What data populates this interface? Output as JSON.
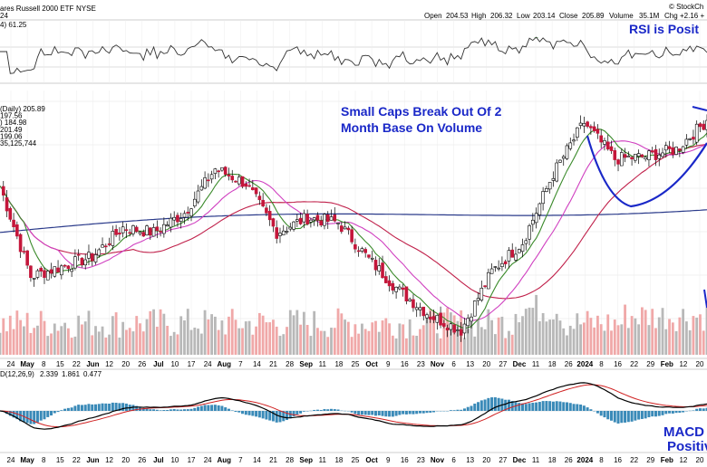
{
  "header": {
    "title": "ares Russell 2000 ETF",
    "exchange": "NYSE",
    "watermark": "© StockCh",
    "quote": {
      "open_label": "Open",
      "open": "204.53",
      "high_label": "High",
      "high": "206.32",
      "low_label": "Low",
      "low": "203.14",
      "close_label": "Close",
      "close": "205.89",
      "volume_label": "Volume",
      "volume": "35.1M",
      "chg_label": "Chg",
      "chg": "+2.16 +"
    },
    "row2": "24"
  },
  "rsi_panel": {
    "label": "4) 61.25",
    "annotation": "RSI is Posit"
  },
  "price_panel": {
    "legend": [
      {
        "text": "(Daily) 205.89",
        "color": "#000000"
      },
      {
        "text": "197.56",
        "color": "#cc2200"
      },
      {
        "text": ") 184.98",
        "color": "#c0507a"
      },
      {
        "text": "201.49",
        "color": "#3a8a2a"
      },
      {
        "text": "199.06",
        "color": "#d040c0"
      },
      {
        "text": "35,125,744",
        "color": "#555555"
      }
    ],
    "annotation_line1": "Small Caps Break Out Of 2",
    "annotation_line2": "Month Base On Volume"
  },
  "macd_panel": {
    "label_prefix": "D(12,26,9)",
    "macd": "2.339",
    "signal": "1.861",
    "hist": "0.477",
    "annotation_line1": "MACD",
    "annotation_line2": "Positiv"
  },
  "x_axis": {
    "upper_labels": [
      "24",
      "May",
      "8",
      "15",
      "22",
      "Jun",
      "12",
      "20",
      "26",
      "Jul",
      "10",
      "17",
      "24",
      "Aug",
      "7",
      "14",
      "21",
      "28",
      "Sep",
      "11",
      "18",
      "25",
      "Oct",
      "9",
      "16",
      "23",
      "Nov",
      "6",
      "13",
      "20",
      "27",
      "Dec",
      "11",
      "18",
      "26",
      "2024",
      "8",
      "16",
      "22",
      "29",
      "Feb",
      "12",
      "20"
    ],
    "lower_labels": [
      "24",
      "May",
      "8",
      "15",
      "22",
      "Jun",
      "12",
      "20",
      "26",
      "Jul",
      "10",
      "17",
      "24",
      "Aug",
      "7",
      "14",
      "21",
      "28",
      "Sep",
      "11",
      "18",
      "25",
      "Oct",
      "9",
      "16",
      "23",
      "Nov",
      "6",
      "13",
      "20",
      "27",
      "Dec",
      "11",
      "18",
      "26",
      "2024",
      "8",
      "16",
      "22",
      "29",
      "Feb",
      "12",
      "20"
    ]
  },
  "colors": {
    "up_candle": "#ffffff",
    "down_candle": "#c4163a",
    "volume_up": "#b8b8b8",
    "volume_down": "#f0a8a8",
    "sma_short": "#3a8a2a",
    "sma_mid": "#d040c0",
    "sma_long": "#c0204a",
    "sma_200": "#2a3a8a",
    "macd_line": "#000000",
    "signal_line": "#d02020",
    "histogram": "#3a8ab8",
    "annotation": "#1a28c8",
    "rsi_fill": "#3a9a3a"
  },
  "chart_data": {
    "type": "candlestick",
    "title": "ares Russell 2000 ETF",
    "period": "Daily",
    "anchors": [
      {
        "date": "Apr 24",
        "close": 192.5
      },
      {
        "date": "May 8",
        "close": 174.0
      },
      {
        "date": "May 22",
        "close": 176.0
      },
      {
        "date": "Jun 1",
        "close": 178.0
      },
      {
        "date": "Jun 12",
        "close": 184.0
      },
      {
        "date": "Jun 26",
        "close": 183.0
      },
      {
        "date": "Jul 10",
        "close": 187.0
      },
      {
        "date": "Jul 24",
        "close": 196.0
      },
      {
        "date": "Aug 1",
        "close": 193.0
      },
      {
        "date": "Aug 14",
        "close": 183.0
      },
      {
        "date": "Aug 28",
        "close": 186.0
      },
      {
        "date": "Sep 11",
        "close": 185.0
      },
      {
        "date": "Sep 25",
        "close": 177.5
      },
      {
        "date": "Oct 9",
        "close": 171.0
      },
      {
        "date": "Oct 23",
        "close": 166.0
      },
      {
        "date": "Oct 31",
        "close": 163.0
      },
      {
        "date": "Nov 13",
        "close": 175.0
      },
      {
        "date": "Nov 27",
        "close": 181.0
      },
      {
        "date": "Dec 11",
        "close": 195.0
      },
      {
        "date": "Dec 26",
        "close": 205.5
      },
      {
        "date": "Jan 8",
        "close": 198.0
      },
      {
        "date": "Jan 22",
        "close": 198.5
      },
      {
        "date": "Feb 1",
        "close": 200.0
      },
      {
        "date": "Feb 20",
        "close": 205.89
      }
    ],
    "ylim": [
      158,
      212
    ],
    "quote": {
      "open": 204.53,
      "high": 206.32,
      "low": 203.14,
      "close": 205.89,
      "volume": "35.1M"
    },
    "indicators": {
      "rsi_14": 61.25,
      "macd": {
        "params": "12,26,9",
        "macd": 2.339,
        "signal": 1.861,
        "histogram": 0.477
      },
      "moving_averages": [
        197.56,
        184.98,
        201.49,
        199.06
      ],
      "volume": 35125744
    },
    "annotations": [
      "RSI is Posit",
      "Small Caps Break Out Of 2 Month Base On Volume",
      "MACD Positiv"
    ],
    "grid": true
  }
}
